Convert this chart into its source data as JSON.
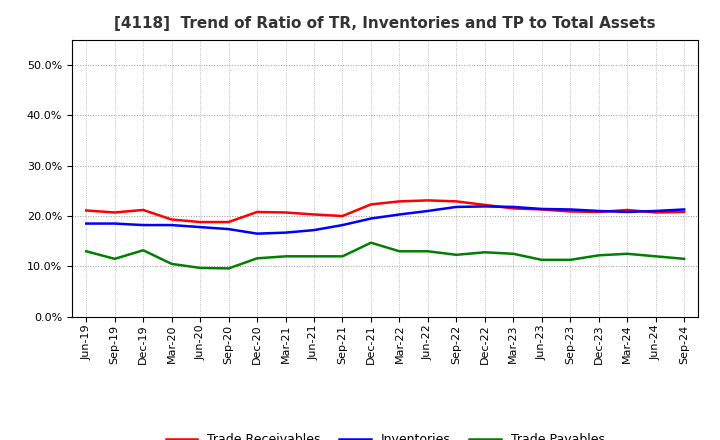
{
  "title": "[4118]  Trend of Ratio of TR, Inventories and TP to Total Assets",
  "x_labels": [
    "Jun-19",
    "Sep-19",
    "Dec-19",
    "Mar-20",
    "Jun-20",
    "Sep-20",
    "Dec-20",
    "Mar-21",
    "Jun-21",
    "Sep-21",
    "Dec-21",
    "Mar-22",
    "Jun-22",
    "Sep-22",
    "Dec-22",
    "Mar-23",
    "Jun-23",
    "Sep-23",
    "Dec-23",
    "Mar-24",
    "Jun-24",
    "Sep-24"
  ],
  "trade_receivables": [
    0.211,
    0.207,
    0.212,
    0.193,
    0.188,
    0.188,
    0.208,
    0.207,
    0.203,
    0.2,
    0.223,
    0.229,
    0.231,
    0.229,
    0.222,
    0.215,
    0.213,
    0.209,
    0.208,
    0.212,
    0.207,
    0.208
  ],
  "inventories": [
    0.185,
    0.185,
    0.182,
    0.182,
    0.178,
    0.174,
    0.165,
    0.167,
    0.172,
    0.182,
    0.195,
    0.203,
    0.21,
    0.218,
    0.219,
    0.218,
    0.214,
    0.213,
    0.21,
    0.208,
    0.21,
    0.213
  ],
  "trade_payables": [
    0.13,
    0.115,
    0.132,
    0.105,
    0.097,
    0.096,
    0.116,
    0.12,
    0.12,
    0.12,
    0.147,
    0.13,
    0.13,
    0.123,
    0.128,
    0.125,
    0.113,
    0.113,
    0.122,
    0.125,
    0.12,
    0.115
  ],
  "tr_color": "#ff0000",
  "inv_color": "#0000ff",
  "tp_color": "#008000",
  "ylim": [
    0.0,
    0.55
  ],
  "yticks": [
    0.0,
    0.1,
    0.2,
    0.3,
    0.4,
    0.5
  ],
  "legend_labels": [
    "Trade Receivables",
    "Inventories",
    "Trade Payables"
  ],
  "bg_color": "#ffffff",
  "grid_color": "#999999",
  "title_color": "#333333",
  "title_fontsize": 11,
  "tick_fontsize": 8,
  "line_width": 1.8
}
